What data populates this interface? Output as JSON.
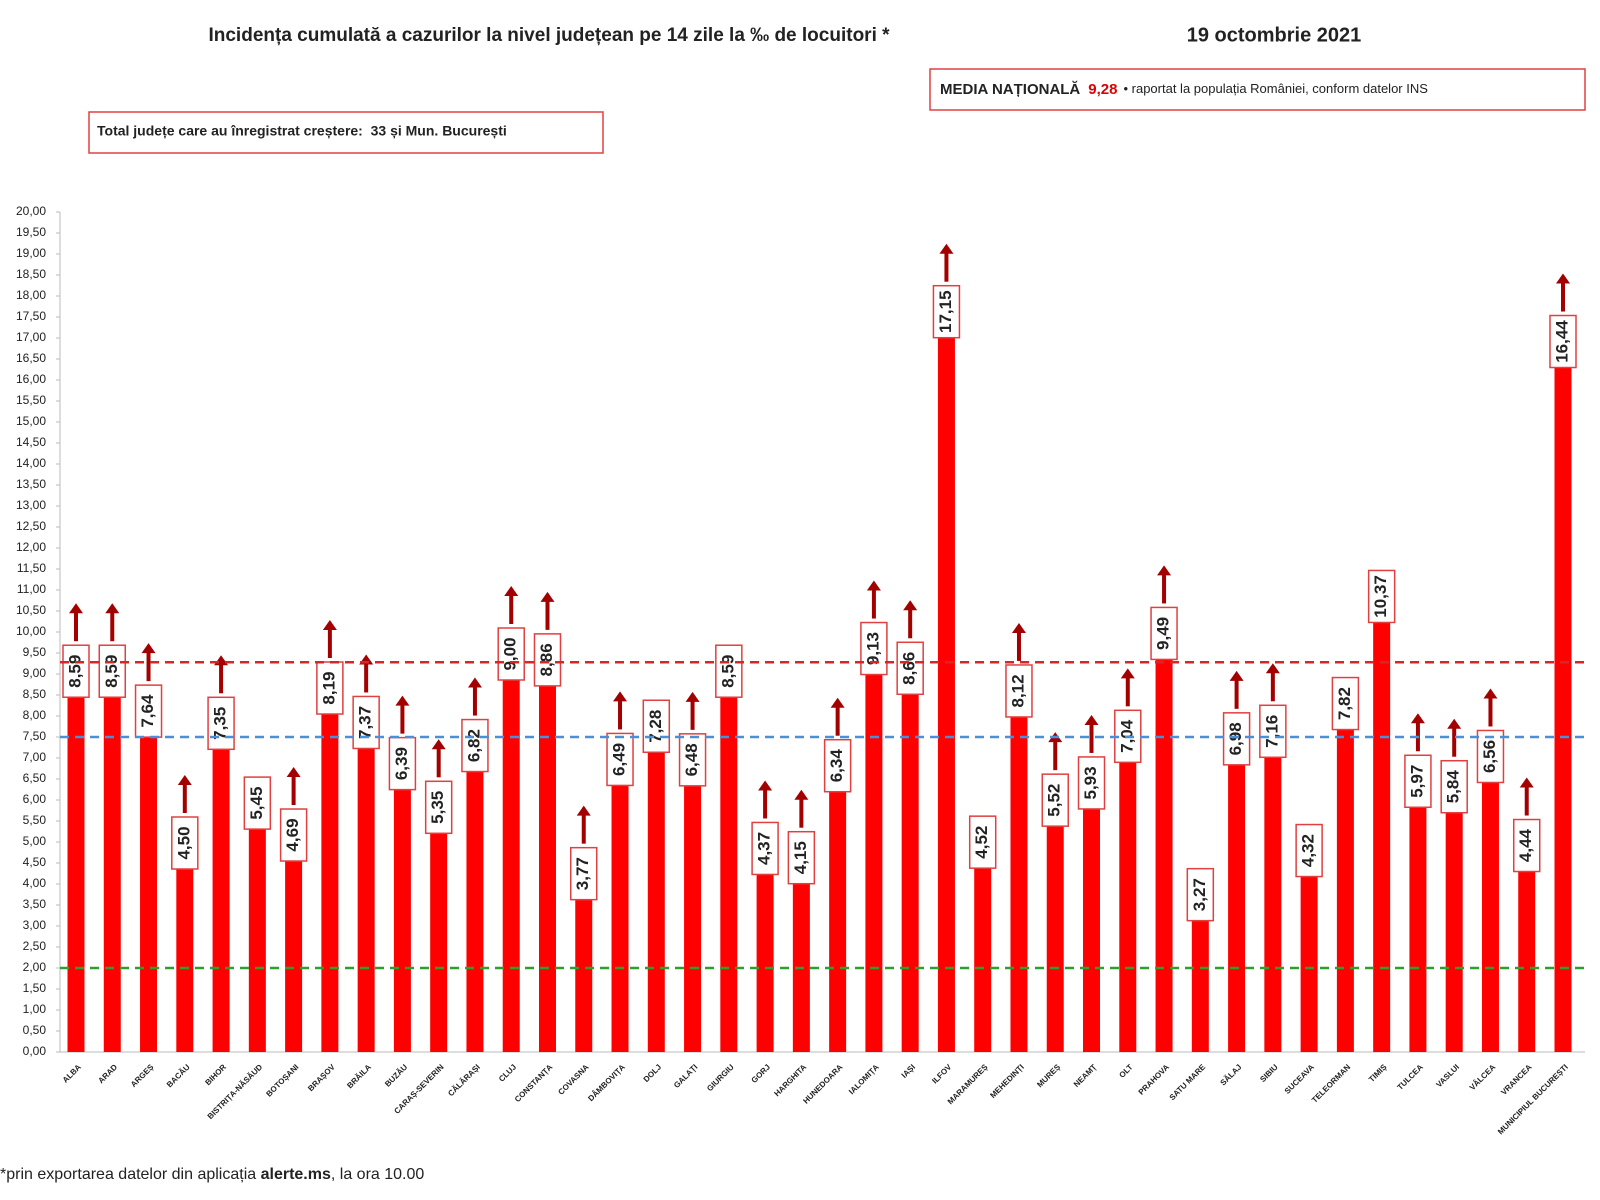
{
  "chart_data": {
    "type": "bar",
    "title": "Incidența cumulată a cazurilor la nivel județean pe 14 zile la ‰ de locuitori *",
    "date": "19 octombrie 2021",
    "national_average": {
      "label": "MEDIA NAȚIONALĂ",
      "value": 9.28,
      "value_label": "9,28",
      "note": "• raportat la populația României, conform datelor INS",
      "color": "#d62728"
    },
    "increase_note": "Total județe care au înregistrat creștere:  33 și Mun. București",
    "footnote": [
      "*prin exportarea datelor din aplicația ",
      "alerte.ms",
      ", la ora 10.00"
    ],
    "categories": [
      "ALBA",
      "ARAD",
      "ARGEȘ",
      "BACĂU",
      "BIHOR",
      "BISTRIȚA-NĂSĂUD",
      "BOTOȘANI",
      "BRAȘOV",
      "BRĂILA",
      "BUZĂU",
      "CARAȘ-SEVERIN",
      "CĂLĂRAȘI",
      "CLUJ",
      "CONSTANȚA",
      "COVASNA",
      "DÂMBOVIȚA",
      "DOLJ",
      "GALAȚI",
      "GIURGIU",
      "GORJ",
      "HARGHITA",
      "HUNEDOARA",
      "IALOMIȚA",
      "IAȘI",
      "ILFOV",
      "MARAMUREȘ",
      "MEHEDINȚI",
      "MUREȘ",
      "NEAMȚ",
      "OLT",
      "PRAHOVA",
      "SATU MARE",
      "SĂLAJ",
      "SIBIU",
      "SUCEAVA",
      "TELEORMAN",
      "TIMIȘ",
      "TULCEA",
      "VASLUI",
      "VÂLCEA",
      "VRANCEA",
      "MUNICIPIUL BUCUREȘTI"
    ],
    "values": [
      8.59,
      8.59,
      7.64,
      4.5,
      7.35,
      5.45,
      4.69,
      8.19,
      7.37,
      6.39,
      5.35,
      6.82,
      9.0,
      8.86,
      3.77,
      6.49,
      7.28,
      6.48,
      8.59,
      4.37,
      4.15,
      6.34,
      9.13,
      8.66,
      17.15,
      4.52,
      8.12,
      5.52,
      5.93,
      7.04,
      9.49,
      3.27,
      6.98,
      7.16,
      4.32,
      7.82,
      10.37,
      5.97,
      5.84,
      6.56,
      4.44,
      16.44
    ],
    "value_labels": [
      "8,59",
      "8,59",
      "7,64",
      "4,50",
      "7,35",
      "5,45",
      "4,69",
      "8,19",
      "7,37",
      "6,39",
      "5,35",
      "6,82",
      "9,00",
      "8,86",
      "3,77",
      "6,49",
      "7,28",
      "6,48",
      "8,59",
      "4,37",
      "4,15",
      "6,34",
      "9,13",
      "8,66",
      "17,15",
      "4,52",
      "8,12",
      "5,52",
      "5,93",
      "7,04",
      "9,49",
      "3,27",
      "6,98",
      "7,16",
      "4,32",
      "7,82",
      "10,37",
      "5,97",
      "5,84",
      "6,56",
      "4,44",
      "16,44"
    ],
    "increased": [
      true,
      true,
      true,
      true,
      true,
      false,
      true,
      true,
      true,
      true,
      true,
      true,
      true,
      true,
      true,
      true,
      false,
      true,
      false,
      true,
      true,
      true,
      true,
      true,
      true,
      false,
      true,
      true,
      true,
      true,
      true,
      false,
      true,
      true,
      false,
      false,
      false,
      true,
      true,
      true,
      true,
      true
    ],
    "color": "#ff0000",
    "arrow_color": "#a30000",
    "reference_lines": [
      {
        "value": 7.5,
        "color": "#4a90d9"
      },
      {
        "value": 2,
        "color": "#2ca02c"
      }
    ],
    "ylim": [
      0,
      20
    ],
    "yticks": [
      {
        "value": 0,
        "label": "0,00"
      },
      {
        "value": 0.5,
        "label": "0,50"
      },
      {
        "value": 1,
        "label": "1,00"
      },
      {
        "value": 1.5,
        "label": "1,50"
      },
      {
        "value": 2,
        "label": "2,00"
      },
      {
        "value": 2.5,
        "label": "2,50"
      },
      {
        "value": 3,
        "label": "3,00"
      },
      {
        "value": 3.5,
        "label": "3,50"
      },
      {
        "value": 4,
        "label": "4,00"
      },
      {
        "value": 4.5,
        "label": "4,50"
      },
      {
        "value": 5,
        "label": "5,00"
      },
      {
        "value": 5.5,
        "label": "5,50"
      },
      {
        "value": 6,
        "label": "6,00"
      },
      {
        "value": 6.5,
        "label": "6,50"
      },
      {
        "value": 7,
        "label": "7,00"
      },
      {
        "value": 7.5,
        "label": "7,50"
      },
      {
        "value": 8,
        "label": "8,00"
      },
      {
        "value": 8.5,
        "label": "8,50"
      },
      {
        "value": 9,
        "label": "9,00"
      },
      {
        "value": 9.5,
        "label": "9,50"
      },
      {
        "value": 10,
        "label": "10,00"
      },
      {
        "value": 10.5,
        "label": "10,50"
      },
      {
        "value": 11,
        "label": "11,00"
      },
      {
        "value": 11.5,
        "label": "11,50"
      },
      {
        "value": 12,
        "label": "12,00"
      },
      {
        "value": 12.5,
        "label": "12,50"
      },
      {
        "value": 13,
        "label": "13,00"
      },
      {
        "value": 13.5,
        "label": "13,50"
      },
      {
        "value": 14,
        "label": "14,00"
      },
      {
        "value": 14.5,
        "label": "14,50"
      },
      {
        "value": 15,
        "label": "15,00"
      },
      {
        "value": 15.5,
        "label": "15,50"
      },
      {
        "value": 16,
        "label": "16,00"
      },
      {
        "value": 16.5,
        "label": "16,50"
      },
      {
        "value": 17,
        "label": "17,00"
      },
      {
        "value": 17.5,
        "label": "17,50"
      },
      {
        "value": 18,
        "label": "18,00"
      },
      {
        "value": 18.5,
        "label": "18,50"
      },
      {
        "value": 19,
        "label": "19,00"
      },
      {
        "value": 19.5,
        "label": "19,50"
      },
      {
        "value": 20,
        "label": "20,00"
      }
    ]
  }
}
